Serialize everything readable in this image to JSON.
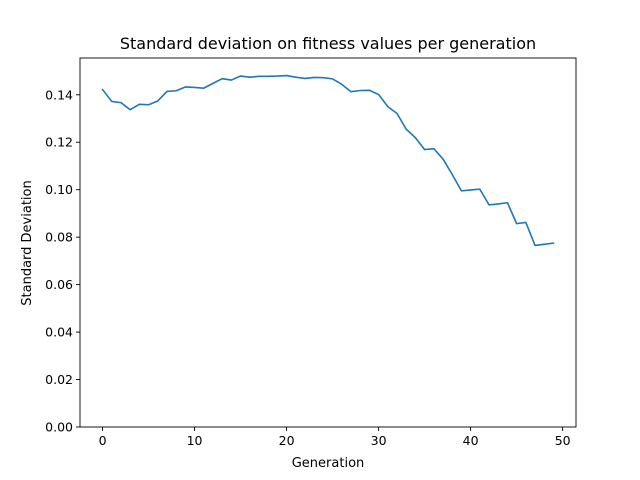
{
  "chart_data": {
    "type": "line",
    "title": "Standard deviation on fitness values per generation",
    "xlabel": "Generation",
    "ylabel": "Standard Deviation",
    "xlim": [
      -2.45,
      51.45
    ],
    "ylim": [
      0.0,
      0.1555
    ],
    "xticks": [
      0,
      10,
      20,
      30,
      40,
      50
    ],
    "xtick_labels": [
      "0",
      "10",
      "20",
      "30",
      "40",
      "50"
    ],
    "yticks": [
      0.0,
      0.02,
      0.04,
      0.06,
      0.08,
      0.1,
      0.12,
      0.14
    ],
    "ytick_labels": [
      "0.00",
      "0.02",
      "0.04",
      "0.06",
      "0.08",
      "0.10",
      "0.12",
      "0.14"
    ],
    "grid": false,
    "series": [
      {
        "color": "#1f77b4",
        "x": [
          0,
          1,
          2,
          3,
          4,
          5,
          6,
          7,
          8,
          9,
          10,
          11,
          12,
          13,
          14,
          15,
          16,
          17,
          18,
          19,
          20,
          21,
          22,
          23,
          24,
          25,
          26,
          27,
          28,
          29,
          30,
          31,
          32,
          33,
          34,
          35,
          36,
          37,
          38,
          39,
          40,
          41,
          42,
          43,
          44,
          45,
          46,
          47,
          48,
          49
        ],
        "values": [
          0.1422,
          0.1372,
          0.1367,
          0.1337,
          0.136,
          0.1358,
          0.1374,
          0.1414,
          0.1417,
          0.1433,
          0.1431,
          0.1428,
          0.1448,
          0.1468,
          0.1462,
          0.1479,
          0.1474,
          0.1478,
          0.1478,
          0.1479,
          0.1481,
          0.1474,
          0.1469,
          0.1473,
          0.1472,
          0.1467,
          0.1444,
          0.1413,
          0.1418,
          0.1419,
          0.1401,
          0.135,
          0.1321,
          0.1255,
          0.1219,
          0.1169,
          0.1173,
          0.1129,
          0.1064,
          0.0995,
          0.0999,
          0.1002,
          0.0936,
          0.094,
          0.0945,
          0.0857,
          0.0862,
          0.0765,
          0.077,
          0.0775
        ]
      }
    ]
  }
}
